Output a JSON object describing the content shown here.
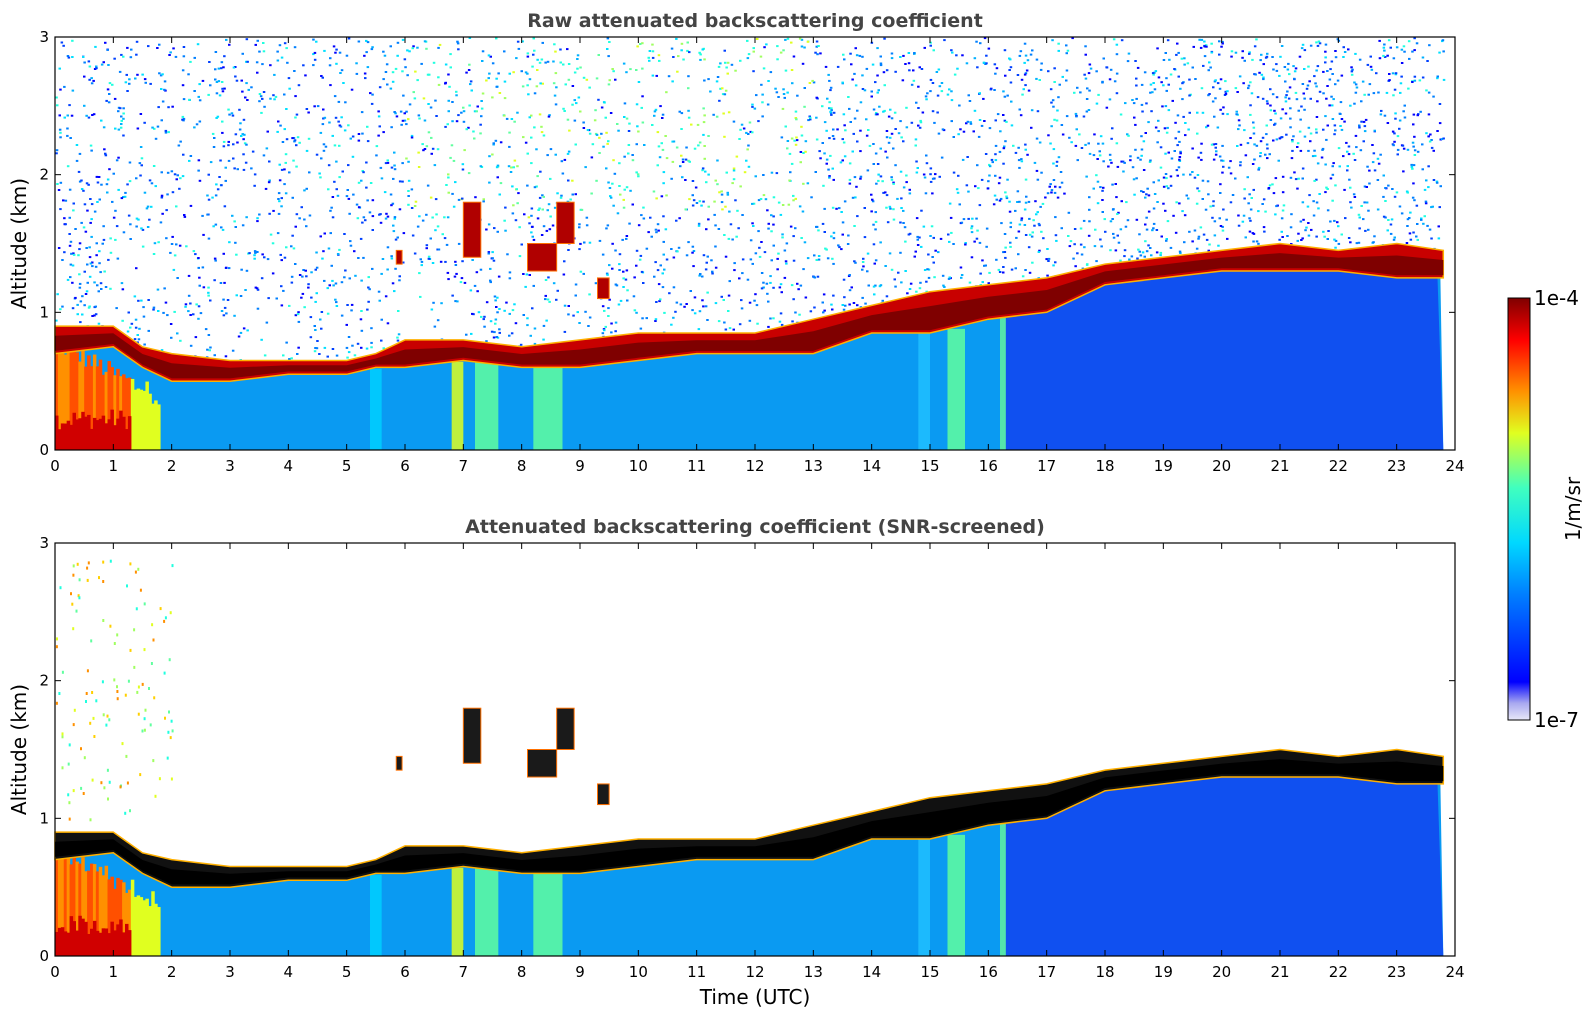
{
  "chart_data": [
    {
      "type": "heatmap",
      "title": "Raw attenuated backscattering coefficient",
      "xlabel": "",
      "ylabel": "Altitude (km)",
      "xlim": [
        0,
        24
      ],
      "ylim": [
        0,
        3
      ],
      "xticks": [
        0,
        1,
        2,
        3,
        4,
        5,
        6,
        7,
        8,
        9,
        10,
        11,
        12,
        13,
        14,
        15,
        16,
        17,
        18,
        19,
        20,
        21,
        22,
        23,
        24
      ],
      "yticks": [
        0,
        1,
        2,
        3
      ],
      "data_end_time": 23.8,
      "cloud_layer": {
        "time": [
          0,
          1,
          1.5,
          2,
          3,
          4,
          5,
          5.5,
          6,
          7,
          8,
          9,
          10,
          11,
          12,
          13,
          14,
          15,
          16,
          17,
          18,
          19,
          20,
          21,
          22,
          23,
          23.8
        ],
        "base_km": [
          0.7,
          0.75,
          0.6,
          0.5,
          0.5,
          0.55,
          0.55,
          0.6,
          0.6,
          0.65,
          0.6,
          0.6,
          0.65,
          0.7,
          0.7,
          0.7,
          0.85,
          0.85,
          0.95,
          1.0,
          1.2,
          1.25,
          1.3,
          1.3,
          1.3,
          1.25,
          1.25
        ],
        "top_km": [
          0.9,
          0.9,
          0.75,
          0.7,
          0.65,
          0.65,
          0.65,
          0.7,
          0.8,
          0.8,
          0.75,
          0.8,
          0.85,
          0.85,
          0.85,
          0.95,
          1.05,
          1.15,
          1.2,
          1.25,
          1.35,
          1.4,
          1.45,
          1.5,
          1.45,
          1.5,
          1.45
        ]
      },
      "noise": "high",
      "colormap": "jet",
      "clim": [
        1e-07,
        0.0001
      ]
    },
    {
      "type": "heatmap",
      "title": "Attenuated backscattering coefficient (SNR-screened)",
      "xlabel": "Time (UTC)",
      "ylabel": "Altitude (km)",
      "xlim": [
        0,
        24
      ],
      "ylim": [
        0,
        3
      ],
      "xticks": [
        0,
        1,
        2,
        3,
        4,
        5,
        6,
        7,
        8,
        9,
        10,
        11,
        12,
        13,
        14,
        15,
        16,
        17,
        18,
        19,
        20,
        21,
        22,
        23,
        24
      ],
      "yticks": [
        0,
        1,
        2,
        3
      ],
      "data_end_time": 23.8,
      "cloud_layer": {
        "time": [
          0,
          1,
          1.5,
          2,
          3,
          4,
          5,
          5.5,
          6,
          7,
          8,
          9,
          10,
          11,
          12,
          13,
          14,
          15,
          16,
          17,
          18,
          19,
          20,
          21,
          22,
          23,
          23.8
        ],
        "base_km": [
          0.7,
          0.75,
          0.6,
          0.5,
          0.5,
          0.55,
          0.55,
          0.6,
          0.6,
          0.65,
          0.6,
          0.6,
          0.65,
          0.7,
          0.7,
          0.7,
          0.85,
          0.85,
          0.95,
          1.0,
          1.2,
          1.25,
          1.3,
          1.3,
          1.3,
          1.25,
          1.25
        ],
        "top_km": [
          0.9,
          0.9,
          0.75,
          0.7,
          0.65,
          0.65,
          0.65,
          0.7,
          0.8,
          0.8,
          0.75,
          0.8,
          0.85,
          0.85,
          0.85,
          0.95,
          1.05,
          1.15,
          1.2,
          1.25,
          1.35,
          1.4,
          1.45,
          1.5,
          1.45,
          1.5,
          1.45
        ]
      },
      "noise": "screened",
      "colormap": "jet",
      "clim": [
        1e-07,
        0.0001
      ]
    }
  ],
  "colorbar": {
    "label": "1/m/sr",
    "max_label": "1e-4",
    "min_label": "1e-7",
    "colors": [
      "#e8e8f8",
      "#b4b4f0",
      "#8080f0",
      "#4040ff",
      "#0000ff",
      "#0040ff",
      "#0080ff",
      "#00b0ff",
      "#00e0ff",
      "#20ffdf",
      "#60ff9f",
      "#a0ff60",
      "#e0ff20",
      "#ffd000",
      "#ff9000",
      "#ff5000",
      "#ff1000",
      "#d00000",
      "#800000"
    ]
  }
}
